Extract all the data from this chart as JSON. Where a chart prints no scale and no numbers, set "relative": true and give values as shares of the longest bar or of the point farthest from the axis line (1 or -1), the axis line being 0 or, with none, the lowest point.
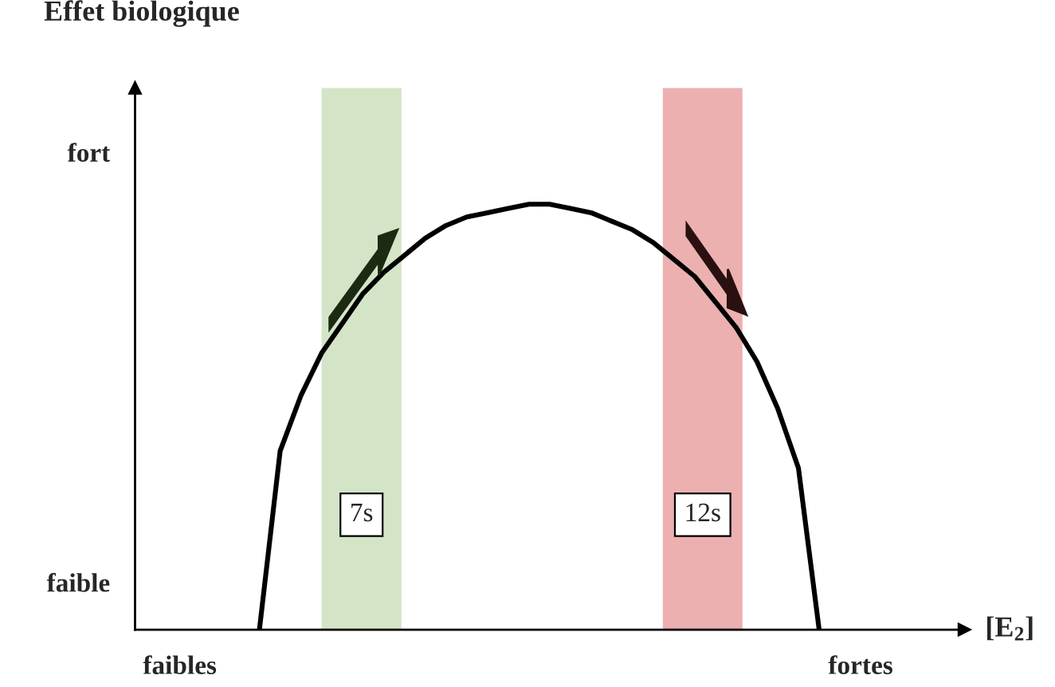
{
  "chart_data": {
    "type": "line",
    "title": "Effet biologique",
    "xlabel": "[E$_{2}$]",
    "relative": true,
    "categories": [
      null,
      null,
      null,
      null,
      null,
      null,
      null,
      null,
      null,
      null,
      null,
      null,
      null,
      null,
      null,
      null,
      null,
      null,
      null,
      null,
      null,
      null,
      null,
      null,
      null,
      null,
      null,
      null,
      null,
      null,
      null,
      null,
      null,
      null,
      null,
      null,
      null,
      null,
      null,
      null,
      null
    ],
    "series": [
      {
        "color": "#000000",
        "values": [
          null,
          null,
          null,
          null,
          null,
          null,
          0,
          0.42,
          0.55,
          0.65,
          0.72,
          0.79,
          0.84,
          0.88,
          0.92,
          0.95,
          0.97,
          0.98,
          0.99,
          1,
          1,
          0.99,
          0.98,
          0.96,
          0.94,
          0.91,
          0.87,
          0.83,
          0.77,
          0.71,
          0.63,
          0.52,
          0.38,
          0,
          null,
          null,
          null,
          null,
          null,
          null,
          null
        ]
      }
    ],
    "annotations": [
      "fort",
      "faible",
      "faibles",
      "fortes",
      "7s",
      "12s"
    ],
    "line_style": "solid",
    "marker": "none"
  }
}
